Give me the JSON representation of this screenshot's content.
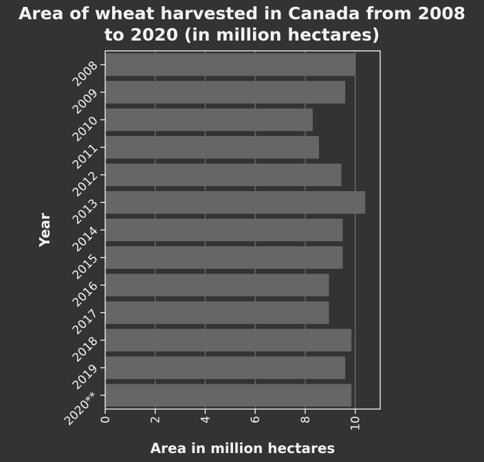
{
  "chart_data": {
    "type": "bar",
    "orientation": "horizontal",
    "title_lines": [
      "Area of wheat harvested in Canada from 2008",
      "to 2020 (in million hectares)"
    ],
    "xlabel": "Area in million hectares",
    "ylabel": "Year",
    "categories": [
      "2008",
      "2009",
      "2010",
      "2011",
      "2012",
      "2013",
      "2014",
      "2015",
      "2016",
      "2017",
      "2018",
      "2019",
      "2020**"
    ],
    "values": [
      10.0,
      9.6,
      8.3,
      8.55,
      9.45,
      10.4,
      9.5,
      9.5,
      8.95,
      8.95,
      9.85,
      9.6,
      9.85
    ],
    "xlim": [
      0,
      11
    ],
    "xticks": [
      0,
      2,
      4,
      6,
      8,
      10
    ],
    "grid": true,
    "legend": "none",
    "colors": {
      "background": "#333333",
      "bar": "#666666",
      "grid": "#808080",
      "text": "#f2f2f2",
      "axis": "#ffffff"
    }
  }
}
